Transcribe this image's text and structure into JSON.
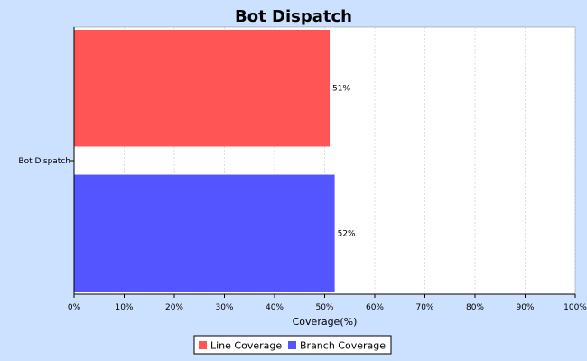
{
  "chart_data": {
    "type": "bar",
    "orientation": "horizontal",
    "title": "Bot Dispatch",
    "categories": [
      "Bot Dispatch"
    ],
    "series": [
      {
        "name": "Line Coverage",
        "values": [
          51
        ],
        "label": "51%",
        "color": "#ff5555"
      },
      {
        "name": "Branch Coverage",
        "values": [
          52
        ],
        "label": "52%",
        "color": "#5555ff"
      }
    ],
    "xlabel": "Coverage(%)",
    "ylabel": "",
    "xlim": [
      0,
      100
    ],
    "xticks": [
      "0%",
      "10%",
      "20%",
      "30%",
      "40%",
      "50%",
      "60%",
      "70%",
      "80%",
      "90%",
      "100%"
    ],
    "grid": true,
    "legend_position": "bottom"
  }
}
